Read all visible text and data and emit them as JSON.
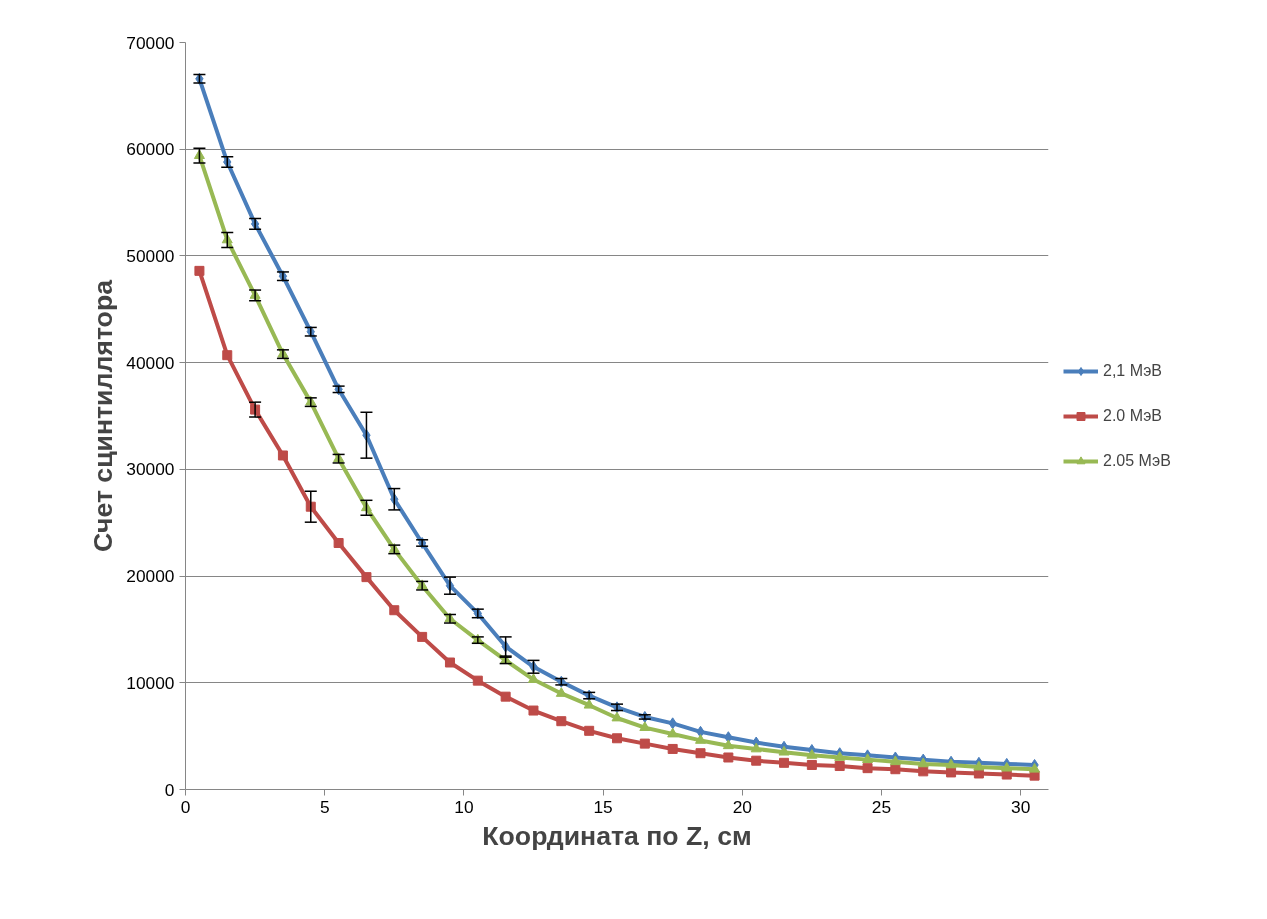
{
  "chart_data": {
    "type": "line",
    "xlabel": "Координата по Z, см",
    "ylabel": "Счет сцинтиллятора",
    "x": [
      0.5,
      1.5,
      2.5,
      3.5,
      4.5,
      5.5,
      6.5,
      7.5,
      8.5,
      9.5,
      10.5,
      11.5,
      12.5,
      13.5,
      14.5,
      15.5,
      16.5,
      17.5,
      18.5,
      19.5,
      20.5,
      21.5,
      22.5,
      23.5,
      24.5,
      25.5,
      26.5,
      27.5,
      28.5,
      29.5,
      30.5
    ],
    "series": [
      {
        "name": "2,1 МэВ",
        "color": "#4a7ebb",
        "marker": "diamond",
        "values": [
          66600,
          58800,
          53000,
          48100,
          42900,
          37500,
          33200,
          27200,
          23100,
          19100,
          16500,
          13400,
          11500,
          10100,
          8800,
          7700,
          6800,
          6200,
          5400,
          4900,
          4400,
          4000,
          3700,
          3400,
          3200,
          3000,
          2800,
          2600,
          2500,
          2400,
          2300
        ],
        "errors": [
          400,
          500,
          500,
          400,
          400,
          300,
          2150,
          1000,
          300,
          800,
          400,
          900,
          600,
          300,
          300,
          300,
          200,
          null,
          null,
          null,
          null,
          null,
          null,
          null,
          null,
          null,
          null,
          null,
          null,
          null,
          null
        ]
      },
      {
        "name": "2.0 МэВ",
        "color": "#be4b48",
        "marker": "square",
        "values": [
          48600,
          40700,
          35600,
          31300,
          26500,
          23100,
          19900,
          16800,
          14300,
          11900,
          10200,
          8700,
          7400,
          6400,
          5500,
          4800,
          4300,
          3800,
          3400,
          3000,
          2700,
          2500,
          2300,
          2200,
          2000,
          1900,
          1700,
          1600,
          1500,
          1400,
          1300
        ],
        "errors": [
          null,
          null,
          700,
          null,
          1450,
          null,
          null,
          null,
          null,
          null,
          null,
          null,
          null,
          null,
          null,
          null,
          null,
          null,
          null,
          null,
          null,
          null,
          null,
          null,
          null,
          null,
          null,
          null,
          null,
          null,
          null
        ]
      },
      {
        "name": "2.05 МэВ",
        "color": "#98b954",
        "marker": "triangle",
        "values": [
          59400,
          51500,
          46300,
          40800,
          36300,
          31000,
          26400,
          22500,
          19100,
          16000,
          14000,
          12100,
          10300,
          9000,
          7900,
          6700,
          5800,
          5200,
          4600,
          4100,
          3800,
          3500,
          3200,
          3000,
          2800,
          2600,
          2400,
          2300,
          2100,
          2000,
          1900
        ],
        "errors": [
          700,
          700,
          500,
          400,
          400,
          400,
          700,
          400,
          400,
          400,
          300,
          300,
          null,
          null,
          null,
          null,
          null,
          null,
          null,
          null,
          null,
          null,
          null,
          null,
          null,
          null,
          null,
          null,
          null,
          null,
          null
        ]
      }
    ],
    "xlim": [
      0,
      31
    ],
    "xticks": [
      0,
      5,
      10,
      15,
      20,
      25,
      30
    ],
    "ylim": [
      0,
      70000
    ],
    "yticks": [
      0,
      10000,
      20000,
      30000,
      40000,
      50000,
      60000,
      70000
    ],
    "grid": "y",
    "legend": "right",
    "line_style": "solid"
  }
}
